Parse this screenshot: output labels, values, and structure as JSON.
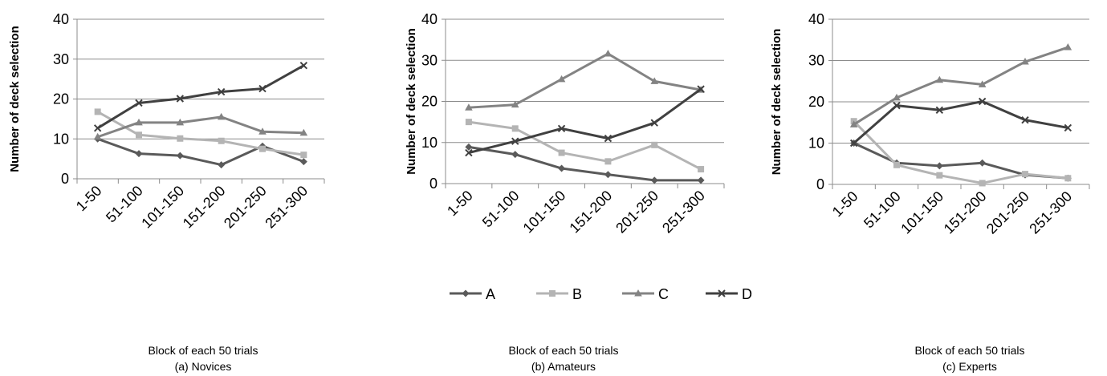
{
  "chart_data": [
    {
      "type": "line",
      "ylabel": "Number of deck selection",
      "xlabel": "Block of each 50 trials",
      "caption": "(a) Novices",
      "categories": [
        "1-50",
        "51-100",
        "101-150",
        "151-200",
        "201-250",
        "251-300"
      ],
      "yticks": [
        0,
        10,
        20,
        30,
        40
      ],
      "ylim": [
        0,
        40
      ],
      "grid": true,
      "series": [
        {
          "name": "A",
          "values": [
            10,
            6.3,
            5.8,
            3.5,
            8.2,
            4.3
          ]
        },
        {
          "name": "B",
          "values": [
            16.8,
            11,
            10.1,
            9.5,
            7.5,
            6
          ]
        },
        {
          "name": "C",
          "values": [
            10.5,
            14.1,
            14.1,
            15.5,
            11.8,
            11.5
          ]
        },
        {
          "name": "D",
          "values": [
            12.7,
            19,
            20.1,
            21.8,
            22.6,
            28.4
          ]
        }
      ]
    },
    {
      "type": "line",
      "ylabel": "Number of deck selection",
      "xlabel": "Block of each 50 trials",
      "caption": "(b) Amateurs",
      "categories": [
        "1-50",
        "51-100",
        "101-150",
        "151-200",
        "201-250",
        "251-300"
      ],
      "yticks": [
        0,
        10,
        20,
        30,
        40
      ],
      "ylim": [
        0,
        40
      ],
      "grid": true,
      "series": [
        {
          "name": "A",
          "values": [
            8.9,
            7.1,
            3.7,
            2.2,
            0.8,
            0.8
          ]
        },
        {
          "name": "B",
          "values": [
            15,
            13.4,
            7.5,
            5.4,
            9.4,
            3.5
          ]
        },
        {
          "name": "C",
          "values": [
            18.5,
            19.2,
            25.4,
            31.6,
            24.9,
            22.8
          ]
        },
        {
          "name": "D",
          "values": [
            7.5,
            10.3,
            13.4,
            11,
            14.8,
            23
          ]
        }
      ]
    },
    {
      "type": "line",
      "ylabel": "Number of deck selection",
      "xlabel": "Block of each 50 trials",
      "caption": "(c) Experts",
      "categories": [
        "1-50",
        "51-100",
        "101-150",
        "151-200",
        "201-250",
        "251-300"
      ],
      "yticks": [
        0,
        10,
        20,
        30,
        40
      ],
      "ylim": [
        0,
        40
      ],
      "grid": true,
      "series": [
        {
          "name": "A",
          "values": [
            10,
            5.2,
            4.5,
            5.2,
            2.3,
            1.5
          ]
        },
        {
          "name": "B",
          "values": [
            15.3,
            4.7,
            2.2,
            0.3,
            2.5,
            1.5
          ]
        },
        {
          "name": "C",
          "values": [
            14.5,
            21,
            25.3,
            24.2,
            29.7,
            33.2
          ]
        },
        {
          "name": "D",
          "values": [
            10,
            19.1,
            18,
            20.1,
            15.6,
            13.7
          ]
        }
      ]
    }
  ],
  "legend": {
    "placement": "bottom-center",
    "items": [
      {
        "name": "A",
        "color": "#5a5a5a",
        "marker": "diamond"
      },
      {
        "name": "B",
        "color": "#b4b4b4",
        "marker": "square"
      },
      {
        "name": "C",
        "color": "#838383",
        "marker": "triangle"
      },
      {
        "name": "D",
        "color": "#404040",
        "marker": "x"
      }
    ]
  },
  "colors": {
    "A": "#5a5a5a",
    "B": "#b4b4b4",
    "C": "#838383",
    "D": "#404040",
    "grid": "#8c8c8c",
    "axis": "#8c8c8c"
  }
}
